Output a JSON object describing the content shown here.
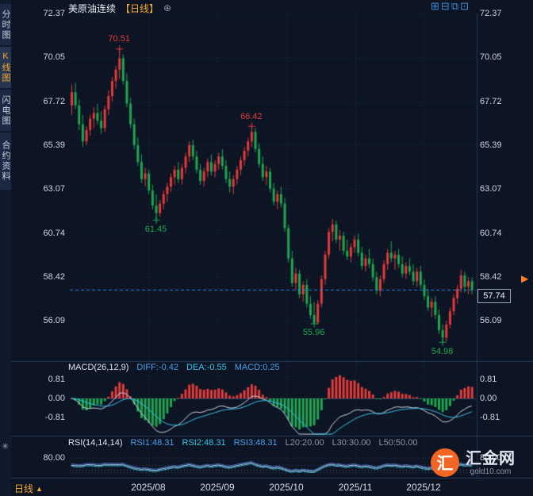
{
  "colors": {
    "up": "#e23b3b",
    "down": "#1fa651",
    "accent_orange": "#f7a832",
    "blue": "#4f9fe8",
    "cyan": "#38c5ea",
    "dashed_line": "#2f7fd8"
  },
  "sidebar": {
    "tabs": [
      {
        "label": "分时图",
        "active": false
      },
      {
        "label": "K线图",
        "active": true
      },
      {
        "label": "闪电图",
        "active": false
      },
      {
        "label": "合约资料",
        "active": false
      }
    ]
  },
  "header": {
    "symbol": "美原油连续",
    "period": "【日线】",
    "add_icon": "⊕",
    "layout_icons": [
      "⊞",
      "⊟",
      "⧉",
      "⊡"
    ]
  },
  "chart_data": {
    "type": "candlestick",
    "title": "美原油连续【日线】",
    "symbol": "美原油连续",
    "period": "日线",
    "price_axis": [
      "72.37",
      "70.05",
      "67.72",
      "65.39",
      "63.07",
      "60.74",
      "58.42",
      "56.09"
    ],
    "ylim": [
      56.09,
      72.37
    ],
    "current_price_label": "57.74",
    "annotations": [
      {
        "text": "70.51",
        "index": 13,
        "price": 70.51,
        "pos": "above",
        "trend": "up"
      },
      {
        "text": "66.42",
        "index": 49,
        "price": 66.42,
        "pos": "above",
        "trend": "up"
      },
      {
        "text": "61.45",
        "index": 23,
        "price": 61.45,
        "pos": "below",
        "trend": "down"
      },
      {
        "text": "55.96",
        "index": 66,
        "price": 55.96,
        "pos": "below",
        "trend": "down"
      },
      {
        "text": "54.98",
        "index": 101,
        "price": 54.98,
        "pos": "below",
        "trend": "down"
      }
    ],
    "candles": [
      [
        67.5,
        68.6,
        67.0,
        68.2
      ],
      [
        68.2,
        68.7,
        67.3,
        67.5
      ],
      [
        67.5,
        67.8,
        66.2,
        66.5
      ],
      [
        66.5,
        67.0,
        65.3,
        65.6
      ],
      [
        65.6,
        66.4,
        65.4,
        66.2
      ],
      [
        66.2,
        67.0,
        65.9,
        66.8
      ],
      [
        66.8,
        67.4,
        66.3,
        67.1
      ],
      [
        67.1,
        67.6,
        66.5,
        66.7
      ],
      [
        66.7,
        67.2,
        66.0,
        66.3
      ],
      [
        66.3,
        67.5,
        66.1,
        67.3
      ],
      [
        67.3,
        68.3,
        67.0,
        68.0
      ],
      [
        68.0,
        69.0,
        67.7,
        68.8
      ],
      [
        68.8,
        69.6,
        68.4,
        69.4
      ],
      [
        69.4,
        70.51,
        68.9,
        70.0
      ],
      [
        70.0,
        70.2,
        68.6,
        68.8
      ],
      [
        68.8,
        69.2,
        67.4,
        67.6
      ],
      [
        67.6,
        67.9,
        66.3,
        66.5
      ],
      [
        66.5,
        66.8,
        65.2,
        65.4
      ],
      [
        65.4,
        65.8,
        64.3,
        64.5
      ],
      [
        64.5,
        64.9,
        63.4,
        63.6
      ],
      [
        63.6,
        64.2,
        63.2,
        63.9
      ],
      [
        63.9,
        64.1,
        62.8,
        63.0
      ],
      [
        63.0,
        63.3,
        62.0,
        62.2
      ],
      [
        62.2,
        62.8,
        61.45,
        61.8
      ],
      [
        61.8,
        62.5,
        61.6,
        62.3
      ],
      [
        62.3,
        63.0,
        62.0,
        62.8
      ],
      [
        62.8,
        63.4,
        62.4,
        63.2
      ],
      [
        63.2,
        63.9,
        62.9,
        63.7
      ],
      [
        63.7,
        64.3,
        63.3,
        64.1
      ],
      [
        64.1,
        64.5,
        63.4,
        63.6
      ],
      [
        63.6,
        64.4,
        63.3,
        64.2
      ],
      [
        64.2,
        65.0,
        63.9,
        64.8
      ],
      [
        64.8,
        65.6,
        64.5,
        65.4
      ],
      [
        65.4,
        65.7,
        64.6,
        64.8
      ],
      [
        64.8,
        65.1,
        63.9,
        64.1
      ],
      [
        64.1,
        64.4,
        63.3,
        63.5
      ],
      [
        63.5,
        64.2,
        63.2,
        64.0
      ],
      [
        64.0,
        64.7,
        63.7,
        64.5
      ],
      [
        64.5,
        64.9,
        63.8,
        64.0
      ],
      [
        64.0,
        64.6,
        63.7,
        64.4
      ],
      [
        64.4,
        65.0,
        64.1,
        64.8
      ],
      [
        64.8,
        65.2,
        64.1,
        64.3
      ],
      [
        64.3,
        64.6,
        63.4,
        63.6
      ],
      [
        63.6,
        64.0,
        62.9,
        63.2
      ],
      [
        63.2,
        63.8,
        62.8,
        63.6
      ],
      [
        63.6,
        64.3,
        63.3,
        64.1
      ],
      [
        64.1,
        64.8,
        63.8,
        64.6
      ],
      [
        64.6,
        65.3,
        64.3,
        65.1
      ],
      [
        65.1,
        65.8,
        64.8,
        65.6
      ],
      [
        65.6,
        66.42,
        65.3,
        66.1
      ],
      [
        66.1,
        66.3,
        65.0,
        65.2
      ],
      [
        65.2,
        65.5,
        64.2,
        64.4
      ],
      [
        64.4,
        64.8,
        63.5,
        63.7
      ],
      [
        63.7,
        64.3,
        63.3,
        64.0
      ],
      [
        64.0,
        64.2,
        62.9,
        63.1
      ],
      [
        63.1,
        63.4,
        62.2,
        62.4
      ],
      [
        62.4,
        63.0,
        62.0,
        62.8
      ],
      [
        62.8,
        63.2,
        62.1,
        62.3
      ],
      [
        62.3,
        62.6,
        60.8,
        61.0
      ],
      [
        61.0,
        61.2,
        59.2,
        59.4
      ],
      [
        59.4,
        59.8,
        57.9,
        58.1
      ],
      [
        58.1,
        58.9,
        57.7,
        58.6
      ],
      [
        58.6,
        58.8,
        57.3,
        57.5
      ],
      [
        57.5,
        58.2,
        57.1,
        58.0
      ],
      [
        58.0,
        58.3,
        56.8,
        57.0
      ],
      [
        57.0,
        57.4,
        56.2,
        56.4
      ],
      [
        56.4,
        57.1,
        55.96,
        56.0
      ],
      [
        56.0,
        57.2,
        55.9,
        57.0
      ],
      [
        57.0,
        58.5,
        56.8,
        58.3
      ],
      [
        58.3,
        59.8,
        58.0,
        59.6
      ],
      [
        59.6,
        61.0,
        59.4,
        60.8
      ],
      [
        60.8,
        61.5,
        60.3,
        61.2
      ],
      [
        61.2,
        61.4,
        60.2,
        60.4
      ],
      [
        60.4,
        60.9,
        59.8,
        60.6
      ],
      [
        60.6,
        60.8,
        59.6,
        59.8
      ],
      [
        59.8,
        60.4,
        59.3,
        59.5
      ],
      [
        59.5,
        60.2,
        59.2,
        60.0
      ],
      [
        60.0,
        60.6,
        59.7,
        60.4
      ],
      [
        60.4,
        60.7,
        59.5,
        59.7
      ],
      [
        59.7,
        60.0,
        58.8,
        59.0
      ],
      [
        59.0,
        59.6,
        58.7,
        59.4
      ],
      [
        59.4,
        59.9,
        58.9,
        59.1
      ],
      [
        59.1,
        59.4,
        58.2,
        58.4
      ],
      [
        58.4,
        58.7,
        57.5,
        57.7
      ],
      [
        57.7,
        58.5,
        57.4,
        58.3
      ],
      [
        58.3,
        59.3,
        58.1,
        59.1
      ],
      [
        59.1,
        59.9,
        58.8,
        59.7
      ],
      [
        59.7,
        60.3,
        59.2,
        59.4
      ],
      [
        59.4,
        59.8,
        58.8,
        59.6
      ],
      [
        59.6,
        59.9,
        58.9,
        59.1
      ],
      [
        59.1,
        59.5,
        58.4,
        58.6
      ],
      [
        58.6,
        59.2,
        58.3,
        59.0
      ],
      [
        59.0,
        59.4,
        58.5,
        58.7
      ],
      [
        58.7,
        59.1,
        58.0,
        58.2
      ],
      [
        58.2,
        58.9,
        57.9,
        58.7
      ],
      [
        58.7,
        59.0,
        57.8,
        58.0
      ],
      [
        58.0,
        58.3,
        57.2,
        57.4
      ],
      [
        57.4,
        57.8,
        56.6,
        56.8
      ],
      [
        56.8,
        57.3,
        56.3,
        57.1
      ],
      [
        57.1,
        57.4,
        56.2,
        56.4
      ],
      [
        56.4,
        56.7,
        55.4,
        55.6
      ],
      [
        55.6,
        55.9,
        54.98,
        55.2
      ],
      [
        55.2,
        56.1,
        55.0,
        55.9
      ],
      [
        55.9,
        56.8,
        55.7,
        56.6
      ],
      [
        56.6,
        57.5,
        56.4,
        57.3
      ],
      [
        57.3,
        58.0,
        57.0,
        57.8
      ],
      [
        57.8,
        58.8,
        57.6,
        58.5
      ],
      [
        58.5,
        58.7,
        57.6,
        57.9
      ],
      [
        57.9,
        58.4,
        57.5,
        58.2
      ],
      [
        58.2,
        58.4,
        57.5,
        57.74
      ]
    ],
    "macd": {
      "title": "MACD(26,12,9)",
      "diff": "DIFF:-0.42",
      "dea": "DEA:-0.55",
      "macd": "MACD:0.25",
      "axis": [
        "0.81",
        "0.00",
        "-0.81"
      ]
    },
    "rsi": {
      "title": "RSI(14,14,14)",
      "r1": "RSI1:48.31",
      "r2": "RSI2:48.31",
      "r3": "RSI3:48.31",
      "l20": "L20:20.00",
      "l30": "L30:30.00",
      "l50": "L50:50.00",
      "axis": [
        "80.00"
      ]
    }
  },
  "bottom_bar": {
    "period_label": "日线",
    "arrow": "▲",
    "dates": [
      "2025/08",
      "2025/09",
      "2025/10",
      "2025/11",
      "2025/12"
    ]
  },
  "watermark": {
    "logo_char": "汇",
    "site_name": "汇金网",
    "site_url": "gold10.com"
  },
  "misc": {
    "edge_arrow": "▶",
    "indicator_icon": "✳"
  }
}
